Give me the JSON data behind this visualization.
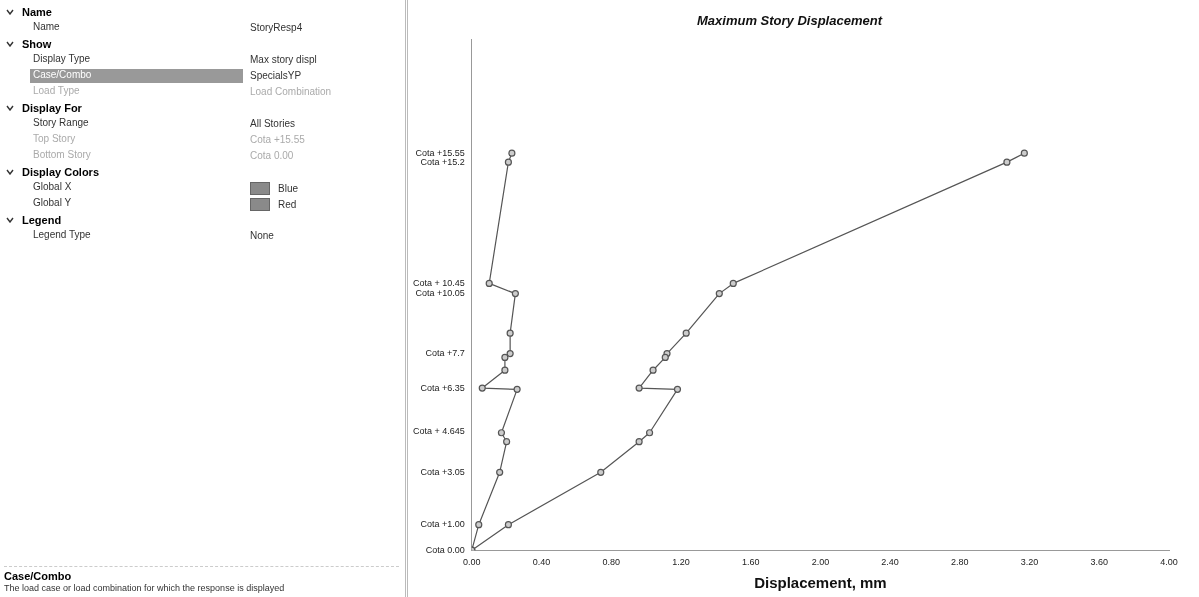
{
  "chart_data": [
    {
      "type": "other",
      "annotations": [
        "Name",
        "Name",
        "StoryResp4",
        "Show",
        "Display Type",
        "Max story displ",
        "Case/Combo",
        "SpecialsYP",
        "Load Type",
        "Load Combination",
        "Display For",
        "Story Range",
        "All Stories",
        "Top Story",
        "Cota +15.55",
        "Bottom Story",
        "Cota 0.00",
        "Display Colors",
        "Global X",
        "Blue",
        "Global Y",
        "Red",
        "Legend",
        "Legend Type",
        "None",
        "Case/Combo",
        "The load case or load combination for which the response is displayed"
      ]
    },
    {
      "type": "line",
      "title": "Maximum Story Displacement",
      "xlabel": "Displacement, mm",
      "marker": "circle",
      "xlim": [
        0,
        4
      ],
      "ylim": [
        0,
        20
      ],
      "xticks": [
        {
          "value": 0,
          "label": "0.00"
        },
        {
          "value": 0.4,
          "label": "0.40"
        },
        {
          "value": 0.8,
          "label": "0.80"
        },
        {
          "value": 1.2,
          "label": "1.20"
        },
        {
          "value": 1.6,
          "label": "1.60"
        },
        {
          "value": 2,
          "label": "2.00"
        },
        {
          "value": 2.4,
          "label": "2.40"
        },
        {
          "value": 2.8,
          "label": "2.80"
        },
        {
          "value": 3.2,
          "label": "3.20"
        },
        {
          "value": 3.6,
          "label": "3.60"
        },
        {
          "value": 4,
          "label": "4.00"
        }
      ],
      "yticks": [
        {
          "value": 0,
          "label": "Cota 0.00"
        },
        {
          "value": 1,
          "label": "Cota +1.00"
        },
        {
          "value": 3.05,
          "label": "Cota +3.05"
        },
        {
          "value": 4.645,
          "label": "Cota + 4.645"
        },
        {
          "value": 6.35,
          "label": "Cota +6.35"
        },
        {
          "value": 7.7,
          "label": "Cota +7.7"
        },
        {
          "value": 10.05,
          "label": "Cota +10.05"
        },
        {
          "value": 10.45,
          "label": "Cota + 10.45"
        },
        {
          "value": 15.2,
          "label": "Cota +15.2"
        },
        {
          "value": 15.55,
          "label": "Cota +15.55"
        }
      ],
      "series": [
        {
          "color": "#555555",
          "x": [
            0.23,
            0.21,
            0.1,
            0.25,
            0.22,
            0.22,
            0.19,
            0.19,
            0.06,
            0.26,
            0.17,
            0.2,
            0.16,
            0.04,
            0
          ],
          "values": [
            15.55,
            15.2,
            10.45,
            10.05,
            8.5,
            7.7,
            7.55,
            7.05,
            6.35,
            6.3,
            4.6,
            4.25,
            3.05,
            1,
            0
          ]
        },
        {
          "color": "#555555",
          "x": [
            3.17,
            3.07,
            1.5,
            1.42,
            1.23,
            1.12,
            1.11,
            1.04,
            0.96,
            1.18,
            1.02,
            0.96,
            0.74,
            0.21,
            0
          ],
          "values": [
            15.55,
            15.2,
            10.45,
            10.05,
            8.5,
            7.7,
            7.55,
            7.05,
            6.35,
            6.3,
            4.6,
            4.25,
            3.05,
            1,
            0
          ]
        }
      ]
    }
  ]
}
